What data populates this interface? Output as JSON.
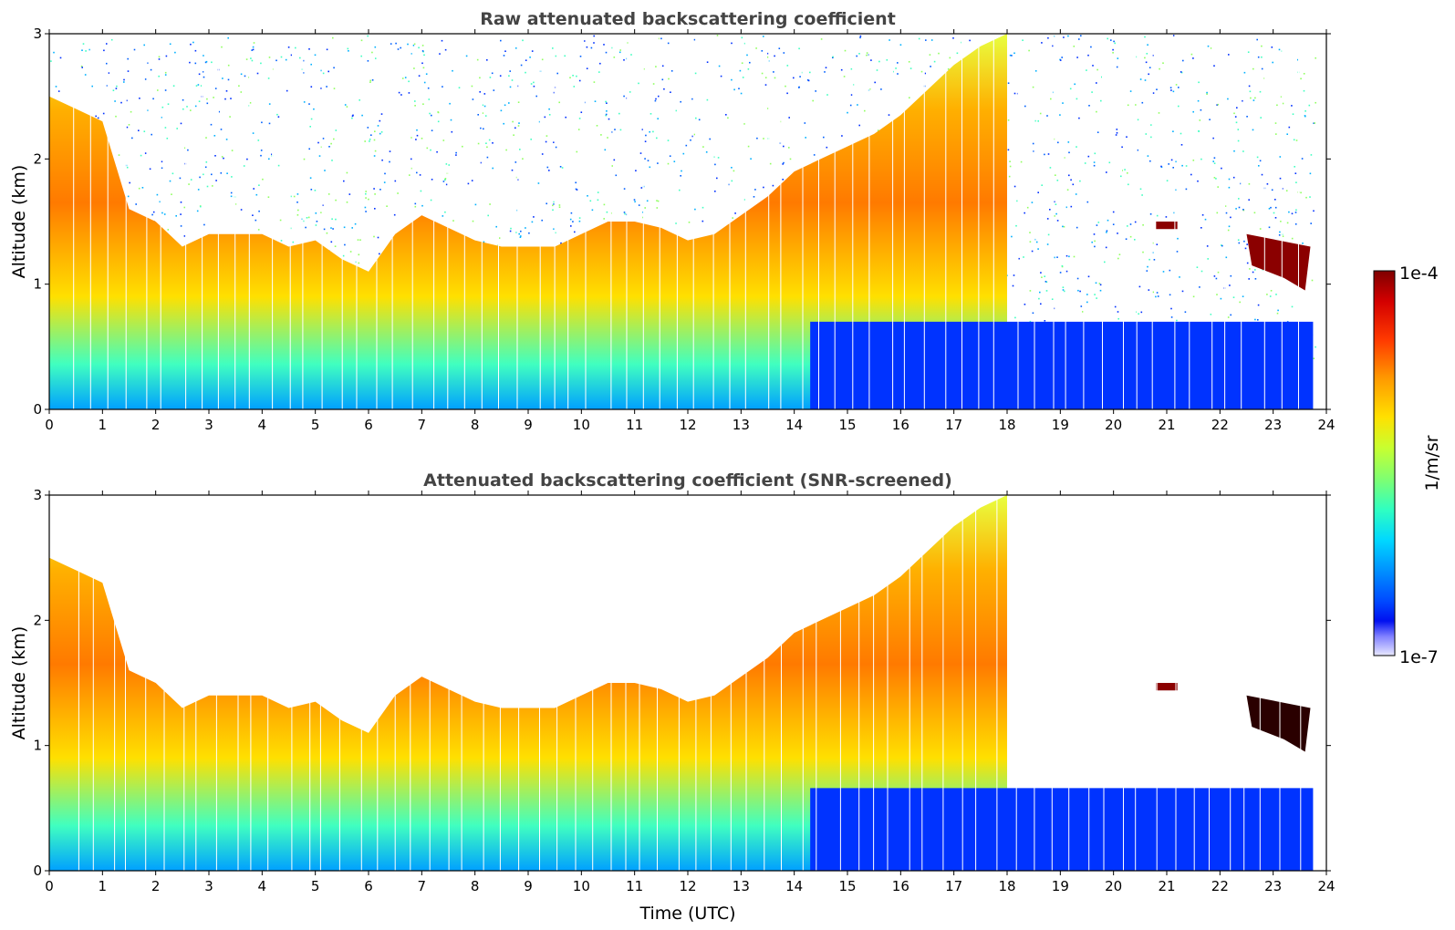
{
  "chart_data": [
    {
      "type": "heatmap",
      "title": "Raw attenuated backscattering coefficient",
      "xlabel": "",
      "ylabel": "Altitude (km)",
      "xlim": [
        0,
        24
      ],
      "ylim": [
        0,
        3
      ],
      "xticks": [
        "0",
        "1",
        "2",
        "3",
        "4",
        "5",
        "6",
        "7",
        "8",
        "9",
        "10",
        "11",
        "12",
        "13",
        "14",
        "15",
        "16",
        "17",
        "18",
        "19",
        "20",
        "21",
        "22",
        "23",
        "24"
      ],
      "yticks": [
        "0",
        "1",
        "2",
        "3"
      ],
      "screened": false,
      "series": [
        {
          "name": "aerosol layer top (km)",
          "x": [
            0,
            0.5,
            1,
            1.5,
            2,
            2.5,
            3,
            3.5,
            4,
            4.5,
            5,
            5.5,
            6,
            6.5,
            7,
            7.5,
            8,
            8.5,
            9,
            9.5,
            10,
            10.5,
            11,
            11.5,
            12,
            12.5,
            13,
            13.5,
            14,
            14.5,
            15,
            15.5,
            16,
            16.5,
            17,
            17.5,
            18
          ],
          "values": [
            2.5,
            2.4,
            2.3,
            1.6,
            1.5,
            1.3,
            1.4,
            1.4,
            1.4,
            1.3,
            1.35,
            1.2,
            1.1,
            1.4,
            1.55,
            1.45,
            1.35,
            1.3,
            1.3,
            1.3,
            1.4,
            1.5,
            1.5,
            1.45,
            1.35,
            1.4,
            1.55,
            1.7,
            1.9,
            2.0,
            2.1,
            2.2,
            2.35,
            2.55,
            2.75,
            2.9,
            3.0
          ]
        }
      ]
    },
    {
      "type": "heatmap",
      "title": "Attenuated backscattering coefficient (SNR-screened)",
      "xlabel": "Time (UTC)",
      "ylabel": "Altitude (km)",
      "xlim": [
        0,
        24
      ],
      "ylim": [
        0,
        3
      ],
      "xticks": [
        "0",
        "1",
        "2",
        "3",
        "4",
        "5",
        "6",
        "7",
        "8",
        "9",
        "10",
        "11",
        "12",
        "13",
        "14",
        "15",
        "16",
        "17",
        "18",
        "19",
        "20",
        "21",
        "22",
        "23",
        "24"
      ],
      "yticks": [
        "0",
        "1",
        "2",
        "3"
      ],
      "screened": true,
      "series": [
        {
          "name": "aerosol layer top (km)",
          "x": [
            0,
            0.5,
            1,
            1.5,
            2,
            2.5,
            3,
            3.5,
            4,
            4.5,
            5,
            5.5,
            6,
            6.5,
            7,
            7.5,
            8,
            8.5,
            9,
            9.5,
            10,
            10.5,
            11,
            11.5,
            12,
            12.5,
            13,
            13.5,
            14,
            14.5,
            15,
            15.5,
            16,
            16.5,
            17,
            17.5,
            18
          ],
          "values": [
            2.5,
            2.4,
            2.3,
            1.6,
            1.5,
            1.3,
            1.4,
            1.4,
            1.4,
            1.3,
            1.35,
            1.2,
            1.1,
            1.4,
            1.55,
            1.45,
            1.35,
            1.3,
            1.3,
            1.3,
            1.4,
            1.5,
            1.5,
            1.45,
            1.35,
            1.4,
            1.55,
            1.7,
            1.9,
            2.0,
            2.1,
            2.2,
            2.35,
            2.55,
            2.75,
            2.9,
            3.0
          ]
        }
      ]
    }
  ],
  "colorbar": {
    "max_label": "1e-4",
    "min_label": "1e-7",
    "unit_label": "1/m/sr",
    "colors": [
      "#7f0000",
      "#d40000",
      "#ff3a00",
      "#ff9a00",
      "#ffe000",
      "#c8ff30",
      "#80ff70",
      "#30ffc0",
      "#00d8ff",
      "#0090ff",
      "#0048ff",
      "#0010f0",
      "#8080ff",
      "#e8e8ff"
    ]
  }
}
